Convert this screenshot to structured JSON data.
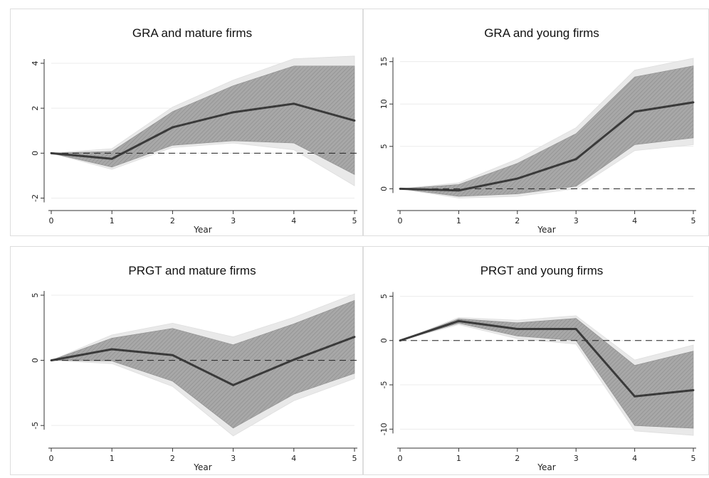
{
  "chart_data": [
    {
      "type": "line",
      "title": "GRA and mature firms",
      "xlabel": "Year",
      "ylabel": "",
      "x": [
        0,
        1,
        2,
        3,
        4,
        5
      ],
      "xticks": [
        0,
        1,
        2,
        3,
        4,
        5
      ],
      "yticks": [
        -2,
        0,
        2,
        4
      ],
      "ylim": [
        -2.3,
        4.6
      ],
      "series": [
        {
          "values": [
            0,
            -0.25,
            1.15,
            1.82,
            2.2,
            1.45
          ]
        }
      ],
      "inner_band": {
        "upper": [
          0,
          0.08,
          1.85,
          3.0,
          3.88,
          3.88
        ],
        "lower": [
          0,
          -0.62,
          0.35,
          0.55,
          0.45,
          -0.95
        ]
      },
      "outer_band": {
        "upper": [
          0,
          0.2,
          2.05,
          3.25,
          4.2,
          4.32
        ],
        "lower": [
          0,
          -0.72,
          0.25,
          0.45,
          0.15,
          -1.45
        ]
      },
      "reference_line": 0,
      "grid": true
    },
    {
      "type": "line",
      "title": "GRA and young firms",
      "xlabel": "Year",
      "ylabel": "",
      "x": [
        0,
        1,
        2,
        3,
        4,
        5
      ],
      "xticks": [
        0,
        1,
        2,
        3,
        4,
        5
      ],
      "yticks": [
        0,
        5,
        10,
        15
      ],
      "ylim": [
        -1.9,
        16.4
      ],
      "series": [
        {
          "values": [
            0,
            -0.2,
            1.2,
            3.5,
            9.1,
            10.2
          ]
        }
      ],
      "inner_band": {
        "upper": [
          0,
          0.5,
          3.0,
          6.5,
          13.2,
          14.5
        ],
        "lower": [
          0,
          -0.9,
          -0.6,
          0.3,
          5.2,
          6.0
        ]
      },
      "outer_band": {
        "upper": [
          0,
          0.7,
          3.5,
          7.2,
          14.0,
          15.4
        ],
        "lower": [
          0,
          -1.1,
          -0.9,
          0.0,
          4.5,
          5.2
        ]
      },
      "reference_line": 0,
      "grid": true
    },
    {
      "type": "line",
      "title": "PRGT and mature firms",
      "xlabel": "Year",
      "ylabel": "",
      "x": [
        0,
        1,
        2,
        3,
        4,
        5
      ],
      "xticks": [
        0,
        1,
        2,
        3,
        4,
        5
      ],
      "yticks": [
        -5,
        0,
        5
      ],
      "ylim": [
        -6.3,
        5.6
      ],
      "series": [
        {
          "values": [
            0,
            0.85,
            0.4,
            -1.9,
            0.05,
            1.8
          ]
        }
      ],
      "inner_band": {
        "upper": [
          0,
          1.7,
          2.45,
          1.2,
          2.8,
          4.6
        ],
        "lower": [
          0,
          -0.05,
          -1.6,
          -5.2,
          -2.6,
          -1.0
        ]
      },
      "outer_band": {
        "upper": [
          0,
          1.95,
          2.85,
          1.8,
          3.3,
          5.1
        ],
        "lower": [
          0,
          -0.25,
          -2.0,
          -5.8,
          -3.1,
          -1.4
        ]
      },
      "reference_line": 0,
      "grid": true
    },
    {
      "type": "line",
      "title": "PRGT and young firms",
      "xlabel": "Year",
      "ylabel": "",
      "x": [
        0,
        1,
        2,
        3,
        4,
        5
      ],
      "xticks": [
        0,
        1,
        2,
        3,
        4,
        5
      ],
      "yticks": [
        -10,
        -5,
        0,
        5
      ],
      "ylim": [
        -11.5,
        6.0
      ],
      "series": [
        {
          "values": [
            0,
            2.2,
            1.3,
            1.3,
            -6.3,
            -5.6
          ]
        }
      ],
      "inner_band": {
        "upper": [
          0,
          2.45,
          2.0,
          2.5,
          -2.8,
          -1.2
        ],
        "lower": [
          0,
          1.95,
          0.5,
          0.0,
          -9.6,
          -9.9
        ]
      },
      "outer_band": {
        "upper": [
          0,
          2.6,
          2.3,
          2.8,
          -2.2,
          -0.5
        ],
        "lower": [
          0,
          1.8,
          0.2,
          -0.4,
          -10.2,
          -10.7
        ]
      },
      "reference_line": 0,
      "grid": true
    }
  ],
  "colors": {
    "line": "#3a3a3a",
    "inner_band": "#9c9c9c",
    "outer_band": "#e9e9e9",
    "grid": "#ececec",
    "axis": "#333333",
    "panel_border": "#dddddd"
  }
}
